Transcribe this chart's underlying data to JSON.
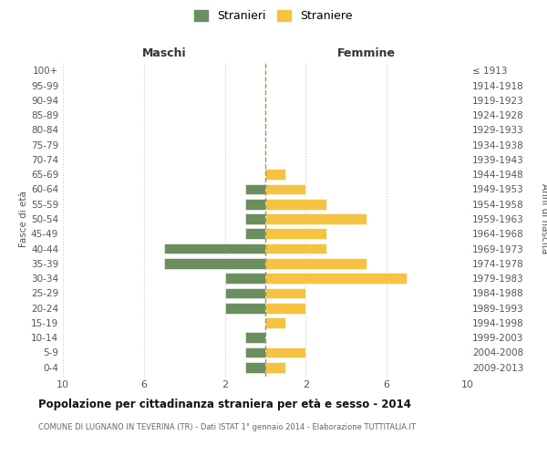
{
  "age_groups": [
    "0-4",
    "5-9",
    "10-14",
    "15-19",
    "20-24",
    "25-29",
    "30-34",
    "35-39",
    "40-44",
    "45-49",
    "50-54",
    "55-59",
    "60-64",
    "65-69",
    "70-74",
    "75-79",
    "80-84",
    "85-89",
    "90-94",
    "95-99",
    "100+"
  ],
  "birth_years": [
    "2009-2013",
    "2004-2008",
    "1999-2003",
    "1994-1998",
    "1989-1993",
    "1984-1988",
    "1979-1983",
    "1974-1978",
    "1969-1973",
    "1964-1968",
    "1959-1963",
    "1954-1958",
    "1949-1953",
    "1944-1948",
    "1939-1943",
    "1934-1938",
    "1929-1933",
    "1924-1928",
    "1919-1923",
    "1914-1918",
    "≤ 1913"
  ],
  "maschi": [
    1,
    1,
    1,
    0,
    2,
    2,
    2,
    5,
    5,
    1,
    1,
    1,
    1,
    0,
    0,
    0,
    0,
    0,
    0,
    0,
    0
  ],
  "femmine": [
    1,
    2,
    0,
    1,
    2,
    2,
    7,
    5,
    3,
    3,
    5,
    3,
    2,
    1,
    0,
    0,
    0,
    0,
    0,
    0,
    0
  ],
  "color_maschi": "#6b8e5e",
  "color_femmine": "#f5c242",
  "title": "Popolazione per cittadinanza straniera per età e sesso - 2014",
  "subtitle": "COMUNE DI LUGNANO IN TEVERINA (TR) - Dati ISTAT 1° gennaio 2014 - Elaborazione TUTTITALIA.IT",
  "label_maschi": "Stranieri",
  "label_femmine": "Straniere",
  "xlabel_left": "Maschi",
  "xlabel_right": "Femmine",
  "ylabel_left": "Fasce di età",
  "ylabel_right": "Anni di nascita",
  "xlim": 10,
  "background_color": "#ffffff",
  "grid_color": "#cccccc",
  "dashed_line_color": "#9a9a5a"
}
